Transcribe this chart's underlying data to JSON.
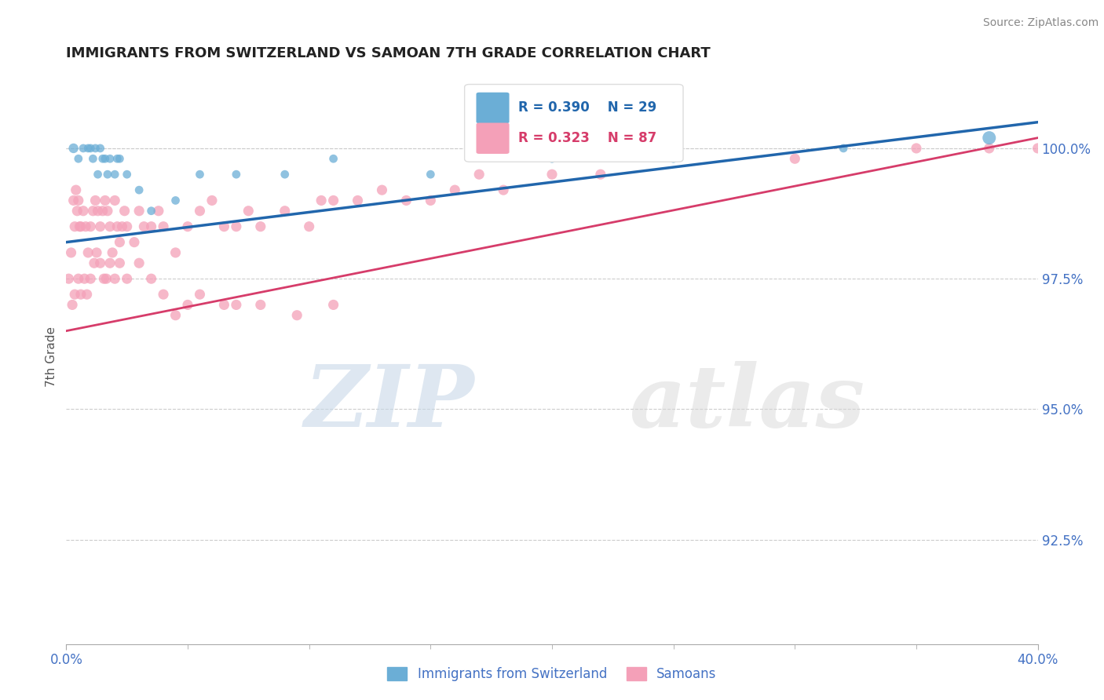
{
  "title": "IMMIGRANTS FROM SWITZERLAND VS SAMOAN 7TH GRADE CORRELATION CHART",
  "source": "Source: ZipAtlas.com",
  "ylabel": "7th Grade",
  "xlim": [
    0.0,
    40.0
  ],
  "ylim": [
    90.5,
    101.5
  ],
  "yticks_right": [
    92.5,
    95.0,
    97.5,
    100.0
  ],
  "legend_blue_label": "Immigrants from Switzerland",
  "legend_pink_label": "Samoans",
  "R_blue": 0.39,
  "N_blue": 29,
  "R_pink": 0.323,
  "N_pink": 87,
  "blue_color": "#6baed6",
  "pink_color": "#f4a0b8",
  "trend_blue_color": "#2166ac",
  "trend_pink_color": "#d63c6a",
  "blue_scatter_x": [
    0.3,
    0.5,
    0.7,
    0.9,
    1.0,
    1.1,
    1.2,
    1.3,
    1.4,
    1.5,
    1.6,
    1.7,
    1.8,
    2.0,
    2.1,
    2.2,
    2.5,
    3.0,
    3.5,
    4.5,
    5.5,
    7.0,
    9.0,
    11.0,
    15.0,
    20.0,
    25.0,
    32.0,
    38.0
  ],
  "blue_scatter_y": [
    100.0,
    99.8,
    100.0,
    100.0,
    100.0,
    99.8,
    100.0,
    99.5,
    100.0,
    99.8,
    99.8,
    99.5,
    99.8,
    99.5,
    99.8,
    99.8,
    99.5,
    99.2,
    98.8,
    99.0,
    99.5,
    99.5,
    99.5,
    99.8,
    99.5,
    99.8,
    99.8,
    100.0,
    100.2
  ],
  "blue_scatter_sizes": [
    80,
    60,
    60,
    60,
    60,
    60,
    60,
    60,
    60,
    60,
    60,
    60,
    60,
    60,
    60,
    60,
    60,
    60,
    60,
    60,
    60,
    60,
    60,
    60,
    60,
    60,
    60,
    60,
    150
  ],
  "pink_scatter_x": [
    0.1,
    0.2,
    0.3,
    0.35,
    0.4,
    0.45,
    0.5,
    0.55,
    0.6,
    0.7,
    0.8,
    0.9,
    1.0,
    1.1,
    1.2,
    1.3,
    1.4,
    1.5,
    1.6,
    1.7,
    1.8,
    1.9,
    2.0,
    2.1,
    2.2,
    2.3,
    2.4,
    2.5,
    2.8,
    3.0,
    3.2,
    3.5,
    3.8,
    4.0,
    4.5,
    5.0,
    5.5,
    6.0,
    6.5,
    7.0,
    7.5,
    8.0,
    9.0,
    10.0,
    10.5,
    11.0,
    12.0,
    13.0,
    14.0,
    15.0,
    16.0,
    17.0,
    18.0,
    20.0,
    22.0,
    25.0,
    30.0,
    35.0,
    38.0,
    40.0,
    0.25,
    0.35,
    0.5,
    0.6,
    0.75,
    0.85,
    1.0,
    1.15,
    1.25,
    1.4,
    1.55,
    1.65,
    1.8,
    2.0,
    2.2,
    2.5,
    3.0,
    3.5,
    4.0,
    4.5,
    5.0,
    5.5,
    6.5,
    7.0,
    8.0,
    9.5,
    11.0
  ],
  "pink_scatter_y": [
    97.5,
    98.0,
    99.0,
    98.5,
    99.2,
    98.8,
    99.0,
    98.5,
    98.5,
    98.8,
    98.5,
    98.0,
    98.5,
    98.8,
    99.0,
    98.8,
    98.5,
    98.8,
    99.0,
    98.8,
    98.5,
    98.0,
    99.0,
    98.5,
    98.2,
    98.5,
    98.8,
    98.5,
    98.2,
    98.8,
    98.5,
    98.5,
    98.8,
    98.5,
    98.0,
    98.5,
    98.8,
    99.0,
    98.5,
    98.5,
    98.8,
    98.5,
    98.8,
    98.5,
    99.0,
    99.0,
    99.0,
    99.2,
    99.0,
    99.0,
    99.2,
    99.5,
    99.2,
    99.5,
    99.5,
    100.0,
    99.8,
    100.0,
    100.0,
    100.0,
    97.0,
    97.2,
    97.5,
    97.2,
    97.5,
    97.2,
    97.5,
    97.8,
    98.0,
    97.8,
    97.5,
    97.5,
    97.8,
    97.5,
    97.8,
    97.5,
    97.8,
    97.5,
    97.2,
    96.8,
    97.0,
    97.2,
    97.0,
    97.0,
    97.0,
    96.8,
    97.0
  ],
  "blue_trend_x0": 0.0,
  "blue_trend_x1": 40.0,
  "blue_trend_y0": 98.2,
  "blue_trend_y1": 100.5,
  "pink_trend_x0": 0.0,
  "pink_trend_x1": 40.0,
  "pink_trend_y0": 96.5,
  "pink_trend_y1": 100.2,
  "dashed_y_top": 100.0,
  "grid_color": "#cccccc",
  "title_fontsize": 13,
  "tick_color": "#4472c4",
  "ylabel_color": "#555555"
}
